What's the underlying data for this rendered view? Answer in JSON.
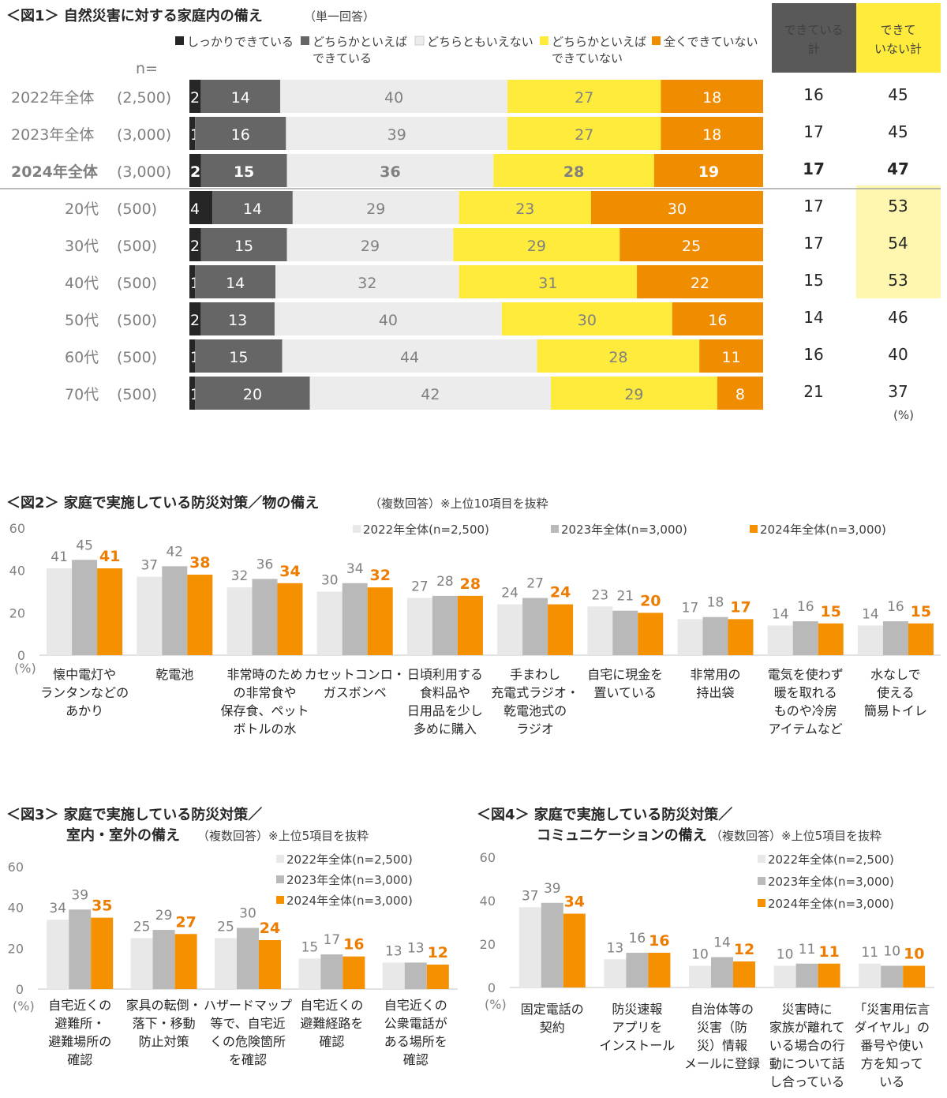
{
  "colors": {
    "dark": "#262626",
    "mid": "#666666",
    "light": "#ececec",
    "yellow": "#ffeb3b",
    "orange": "#f08c00",
    "gray2022": "#e8e8e8",
    "gray2023": "#b9b9b9",
    "orange2024": "#f59100",
    "yellowPale": "#fff7b0"
  },
  "fig1": {
    "title": "＜図1＞ 自然災害に対する家庭内の備え",
    "note": "（単一回答）",
    "legend": [
      "しっかりできている",
      "どちらかといえば\nできている",
      "どちらともいえない",
      "どちらかといえば\nできていない",
      "全くできていない"
    ],
    "n_label": "n=",
    "sum_headers": [
      "できている\n計",
      "できて\nいない計"
    ],
    "pct": "(%)",
    "chart_data": {
      "type": "bar",
      "orientation": "horizontal-stacked-100",
      "categories": [
        "2022年全体",
        "2023年全体",
        "2024年全体",
        "20代",
        "30代",
        "40代",
        "50代",
        "60代",
        "70代"
      ],
      "n": [
        "(2,500)",
        "(3,000)",
        "(3,000)",
        "(500)",
        "(500)",
        "(500)",
        "(500)",
        "(500)",
        "(500)"
      ],
      "series": [
        {
          "name": "しっかりできている",
          "values": [
            2,
            1,
            2,
            4,
            2,
            1,
            2,
            1,
            1
          ]
        },
        {
          "name": "どちらかといえばできている",
          "values": [
            14,
            16,
            15,
            14,
            15,
            14,
            13,
            15,
            20
          ]
        },
        {
          "name": "どちらともいえない",
          "values": [
            40,
            39,
            36,
            29,
            29,
            32,
            40,
            44,
            42
          ]
        },
        {
          "name": "どちらかといえばできていない",
          "values": [
            27,
            27,
            28,
            23,
            29,
            31,
            30,
            28,
            29
          ]
        },
        {
          "name": "全くできていない",
          "values": [
            18,
            18,
            19,
            30,
            25,
            22,
            16,
            11,
            8
          ]
        }
      ],
      "done_total": [
        16,
        17,
        17,
        17,
        17,
        15,
        14,
        16,
        21
      ],
      "notdone_total": [
        45,
        45,
        47,
        53,
        54,
        53,
        46,
        40,
        37
      ]
    }
  },
  "fig2": {
    "title": "＜図2＞ 家庭で実施している防災対策／物の備え",
    "note": "（複数回答）※上位10項目を抜粋",
    "legend": [
      "2022年全体(n=2,500)",
      "2023年全体(n=3,000)",
      "2024年全体(n=3,000)"
    ],
    "pct": "(%)",
    "chart_data": {
      "type": "bar",
      "categories": [
        "懐中電灯や\nランタンなどの\nあかり",
        "乾電池",
        "非常時のため\nの非常食や\n保存食、ペット\nボトルの水",
        "カセットコンロ・\nガスボンベ",
        "日頃利用する\n食料品や\n日用品を少し\n多めに購入",
        "手まわし\n充電式ラジオ・\n乾電池式の\nラジオ",
        "自宅に現金を\n置いている",
        "非常用の\n持出袋",
        "電気を使わず\n暖を取れる\nものや冷房\nアイテムなど",
        "水なしで\n使える\n簡易トイレ"
      ],
      "series": [
        {
          "name": "2022年全体(n=2,500)",
          "values": [
            41,
            37,
            32,
            30,
            27,
            24,
            23,
            17,
            14,
            14
          ]
        },
        {
          "name": "2023年全体(n=3,000)",
          "values": [
            45,
            42,
            36,
            34,
            28,
            27,
            21,
            18,
            16,
            16
          ]
        },
        {
          "name": "2024年全体(n=3,000)",
          "values": [
            41,
            38,
            34,
            32,
            28,
            24,
            20,
            17,
            15,
            15
          ]
        }
      ],
      "ylim": [
        0,
        60
      ],
      "yticks": [
        0,
        20,
        40,
        60
      ]
    }
  },
  "fig3": {
    "title": "＜図3＞ 家庭で実施している防災対策／",
    "title2": "室内・室外の備え",
    "note": "（複数回答）※上位5項目を抜粋",
    "legend": [
      "2022年全体(n=2,500)",
      "2023年全体(n=3,000)",
      "2024年全体(n=3,000)"
    ],
    "pct": "(%)",
    "chart_data": {
      "type": "bar",
      "categories": [
        "自宅近くの\n避難所・\n避難場所の\n確認",
        "家具の転倒・\n落下・移動\n防止対策",
        "ハザードマップ\n等で、自宅近\nくの危険箇所\nを確認",
        "自宅近くの\n避難経路を\n確認",
        "自宅近くの\n公衆電話が\nある場所を\n確認"
      ],
      "series": [
        {
          "name": "2022年全体(n=2,500)",
          "values": [
            34,
            25,
            25,
            15,
            13
          ]
        },
        {
          "name": "2023年全体(n=3,000)",
          "values": [
            39,
            29,
            30,
            17,
            13
          ]
        },
        {
          "name": "2024年全体(n=3,000)",
          "values": [
            35,
            27,
            24,
            16,
            12
          ]
        }
      ],
      "ylim": [
        0,
        60
      ],
      "yticks": [
        0,
        20,
        40,
        60
      ]
    }
  },
  "fig4": {
    "title": "＜図4＞ 家庭で実施している防災対策／",
    "title2": "コミュニケーションの備え",
    "note": "（複数回答）※上位5項目を抜粋",
    "legend": [
      "2022年全体(n=2,500)",
      "2023年全体(n=3,000)",
      "2024年全体(n=3,000)"
    ],
    "pct": "(%)",
    "chart_data": {
      "type": "bar",
      "categories": [
        "固定電話の\n契約",
        "防災速報\nアプリを\nインストール",
        "自治体等の\n災害（防\n災）情報\nメールに登録",
        "災害時に\n家族が離れて\nいる場合の行\n動について話\nし合っている",
        "「災害用伝言\nダイヤル」の\n番号や使い\n方を知って\nいる"
      ],
      "series": [
        {
          "name": "2022年全体(n=2,500)",
          "values": [
            37,
            13,
            10,
            10,
            11
          ]
        },
        {
          "name": "2023年全体(n=3,000)",
          "values": [
            39,
            16,
            14,
            11,
            10
          ]
        },
        {
          "name": "2024年全体(n=3,000)",
          "values": [
            34,
            16,
            12,
            11,
            10
          ]
        }
      ],
      "ylim": [
        0,
        60
      ],
      "yticks": [
        0,
        20,
        40,
        60
      ]
    }
  }
}
